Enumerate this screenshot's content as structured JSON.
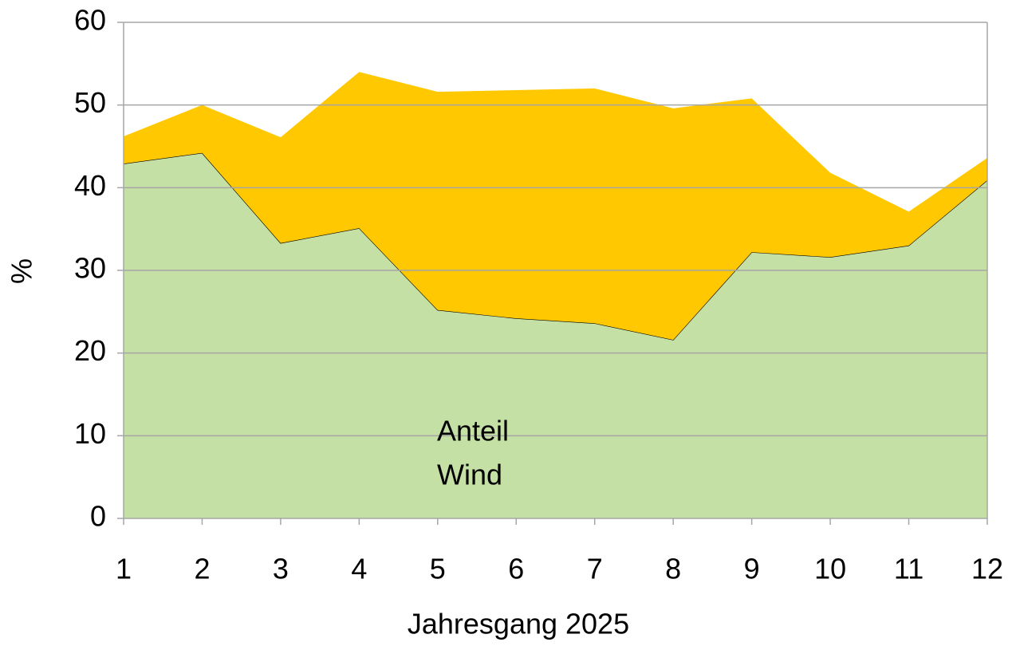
{
  "chart_data": {
    "type": "stacked_area",
    "x": [
      1,
      2,
      3,
      4,
      5,
      6,
      7,
      8,
      9,
      10,
      11,
      12
    ],
    "series": [
      {
        "color": "#c5e0a5",
        "values": [
          42.9,
          44.2,
          33.3,
          35.1,
          25.2,
          24.2,
          23.6,
          21.6,
          32.2,
          31.6,
          33.0,
          40.9
        ]
      },
      {
        "color": "#ffc800",
        "values": [
          3.3,
          5.8,
          12.8,
          18.9,
          26.4,
          27.6,
          28.4,
          28.0,
          18.6,
          10.2,
          4.1,
          2.7
        ]
      }
    ],
    "annotations": [
      "Anteil",
      "Wind"
    ],
    "xlabel": "Jahresgang 2025",
    "ylabel": "%",
    "xlim": [
      1,
      12
    ],
    "xticks": [
      1,
      2,
      3,
      4,
      5,
      6,
      7,
      8,
      9,
      10,
      11,
      12
    ],
    "ylim": [
      0,
      60
    ],
    "yticks": [
      0,
      10,
      20,
      30,
      40,
      50,
      60
    ],
    "grid": true
  }
}
